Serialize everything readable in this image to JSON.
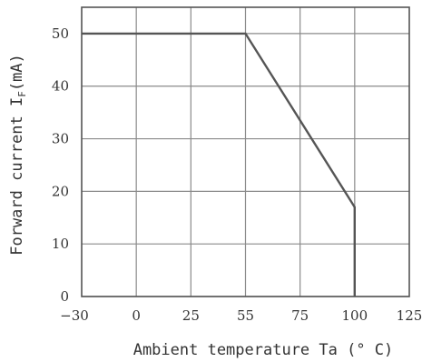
{
  "chart_data": {
    "type": "line",
    "xlabel": "Ambient temperature Ta (° C)",
    "ylabel_main": "Forward current I",
    "ylabel_sub": "F",
    "ylabel_unit": "(mA)",
    "x_ticks": [
      {
        "label": "−30",
        "value": -30
      },
      {
        "label": "0",
        "value": 0
      },
      {
        "label": "25",
        "value": 25
      },
      {
        "label": "55",
        "value": 55
      },
      {
        "label": "75",
        "value": 75
      },
      {
        "label": "100",
        "value": 100
      },
      {
        "label": "125",
        "value": 125
      }
    ],
    "y_ticks": [
      0,
      10,
      20,
      30,
      40,
      50
    ],
    "xlim": [
      -30,
      125
    ],
    "ylim": [
      0,
      55
    ],
    "grid": true,
    "series": [
      {
        "values": [
          {
            "x": -30,
            "y": 50
          },
          {
            "x": 55,
            "y": 50
          },
          {
            "x": 100,
            "y": 17
          },
          {
            "x": 100,
            "y": 0
          }
        ]
      }
    ]
  }
}
